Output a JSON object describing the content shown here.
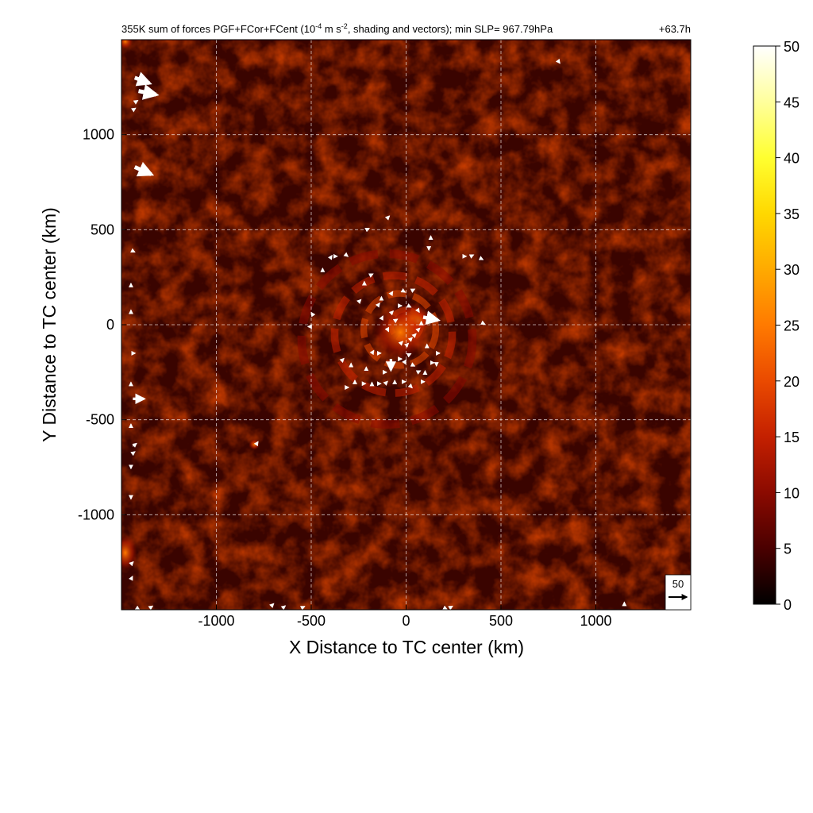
{
  "chart_data": {
    "type": "heatmap",
    "title_prefix": "355K sum of forces PGF+FCor+FCent (10",
    "title_exp1": "-4",
    "title_mid": " m s",
    "title_exp2": "-2",
    "title_suffix": ", shading and vectors); min SLP= 967.79hPa",
    "time_label": "+63.7h",
    "xlabel": "X Distance to TC center (km)",
    "ylabel": "Y Distance to TC center (km)",
    "xlim": [
      -1500,
      1500
    ],
    "ylim": [
      -1500,
      1500
    ],
    "xticks": [
      -1000,
      -500,
      0,
      500,
      1000
    ],
    "yticks": [
      -1000,
      -500,
      0,
      500,
      1000
    ],
    "xtick_labels": [
      "-1000",
      "-500",
      "0",
      "500",
      "1000"
    ],
    "ytick_labels": [
      "-1000",
      "-500",
      "0",
      "500",
      "1000"
    ],
    "grid": true,
    "colorbar": {
      "range": [
        0,
        50
      ],
      "ticks": [
        0,
        5,
        10,
        15,
        20,
        25,
        30,
        35,
        40,
        45,
        50
      ],
      "tick_labels": [
        "0",
        "5",
        "10",
        "15",
        "20",
        "25",
        "30",
        "35",
        "40",
        "45",
        "50"
      ],
      "colors": [
        "#000000",
        "#4a0000",
        "#8b0a00",
        "#c42000",
        "#ea4a00",
        "#ff7a00",
        "#ffaa00",
        "#ffd800",
        "#ffff30",
        "#ffff9c",
        "#ffffff"
      ]
    },
    "reference_vector": {
      "label": "50",
      "magnitude": 50
    },
    "vectors": [
      {
        "x": -1430,
        "y": 1300,
        "u": 40,
        "v": -15
      },
      {
        "x": -1410,
        "y": 1230,
        "u": 48,
        "v": -10
      },
      {
        "x": -1430,
        "y": 830,
        "u": 45,
        "v": -20
      },
      {
        "x": -1430,
        "y": 1170,
        "u": 8,
        "v": 5
      },
      {
        "x": -1440,
        "y": 1130,
        "u": 6,
        "v": 4
      },
      {
        "x": -1440,
        "y": -390,
        "u": 30,
        "v": 0
      },
      {
        "x": -1440,
        "y": -640,
        "u": 10,
        "v": 8
      },
      {
        "x": -1445,
        "y": -680,
        "u": 8,
        "v": 6
      },
      {
        "x": -1445,
        "y": 390,
        "u": 6,
        "v": -3
      },
      {
        "x": -1445,
        "y": -150,
        "u": 6,
        "v": 0
      },
      {
        "x": -1450,
        "y": -1340,
        "u": 4,
        "v": 8
      },
      {
        "x": -1450,
        "y": 200,
        "u": 0,
        "v": 6
      },
      {
        "x": -1450,
        "y": -540,
        "u": 0,
        "v": 6
      },
      {
        "x": -1450,
        "y": -320,
        "u": 0,
        "v": 6
      },
      {
        "x": -1450,
        "y": 60,
        "u": 0,
        "v": 6
      },
      {
        "x": -1450,
        "y": -740,
        "u": 0,
        "v": -6
      },
      {
        "x": -1450,
        "y": -900,
        "u": 0,
        "v": -6
      },
      {
        "x": -1450,
        "y": -1260,
        "u": 5,
        "v": 5
      },
      {
        "x": -1420,
        "y": -1490,
        "u": 6,
        "v": -4
      },
      {
        "x": -1350,
        "y": -1490,
        "u": 6,
        "v": 4
      },
      {
        "x": -710,
        "y": -1480,
        "u": 6,
        "v": 6
      },
      {
        "x": -650,
        "y": -1490,
        "u": 5,
        "v": 4
      },
      {
        "x": -550,
        "y": -1490,
        "u": 6,
        "v": 3
      },
      {
        "x": 200,
        "y": -1490,
        "u": 6,
        "v": -3
      },
      {
        "x": 230,
        "y": -1490,
        "u": 5,
        "v": 3
      },
      {
        "x": 1150,
        "y": -1480,
        "u": 0,
        "v": 10
      },
      {
        "x": 800,
        "y": 1390,
        "u": 3,
        "v": -4
      },
      {
        "x": -790,
        "y": -630,
        "u": 4,
        "v": 6
      },
      {
        "x": 90,
        "y": 40,
        "u": 40,
        "v": -8
      },
      {
        "x": -80,
        "y": -180,
        "u": 0,
        "v": -30
      },
      {
        "x": 80,
        "y": 0,
        "u": 0,
        "v": 8
      },
      {
        "x": 60,
        "y": -30,
        "u": 6,
        "v": 6
      },
      {
        "x": 40,
        "y": -60,
        "u": 6,
        "v": 6
      },
      {
        "x": 20,
        "y": -80,
        "u": 6,
        "v": 6
      },
      {
        "x": 0,
        "y": -110,
        "u": 6,
        "v": 6
      },
      {
        "x": -30,
        "y": -100,
        "u": 6,
        "v": 6
      },
      {
        "x": -60,
        "y": 20,
        "u": 6,
        "v": 4
      },
      {
        "x": -80,
        "y": 60,
        "u": 5,
        "v": 5
      },
      {
        "x": -100,
        "y": -20,
        "u": 3,
        "v": -6
      },
      {
        "x": -130,
        "y": 30,
        "u": 3,
        "v": 6
      },
      {
        "x": -150,
        "y": 100,
        "u": 4,
        "v": 5
      },
      {
        "x": -40,
        "y": 100,
        "u": 5,
        "v": 0
      },
      {
        "x": 10,
        "y": 100,
        "u": 6,
        "v": -3
      },
      {
        "x": 60,
        "y": 80,
        "u": 4,
        "v": -6
      },
      {
        "x": -20,
        "y": 180,
        "u": 5,
        "v": -3
      },
      {
        "x": 30,
        "y": 180,
        "u": 6,
        "v": 3
      },
      {
        "x": -80,
        "y": 160,
        "u": 4,
        "v": 6
      },
      {
        "x": -130,
        "y": 130,
        "u": 0,
        "v": 6
      },
      {
        "x": -150,
        "y": -150,
        "u": 6,
        "v": 0
      },
      {
        "x": -180,
        "y": -150,
        "u": 4,
        "v": 6
      },
      {
        "x": -120,
        "y": -250,
        "u": 6,
        "v": 0
      },
      {
        "x": -210,
        "y": -240,
        "u": 0,
        "v": 6
      },
      {
        "x": -290,
        "y": -220,
        "u": 0,
        "v": 6
      },
      {
        "x": -340,
        "y": -190,
        "u": 5,
        "v": 5
      },
      {
        "x": -320,
        "y": -330,
        "u": 6,
        "v": 0
      },
      {
        "x": -270,
        "y": -310,
        "u": 0,
        "v": 6
      },
      {
        "x": -230,
        "y": -310,
        "u": 6,
        "v": 0
      },
      {
        "x": -180,
        "y": -320,
        "u": 0,
        "v": 6
      },
      {
        "x": -150,
        "y": -310,
        "u": 6,
        "v": 0
      },
      {
        "x": -110,
        "y": -310,
        "u": 5,
        "v": 5
      },
      {
        "x": -60,
        "y": -310,
        "u": 0,
        "v": 6
      },
      {
        "x": -20,
        "y": -300,
        "u": 6,
        "v": 0
      },
      {
        "x": 20,
        "y": -320,
        "u": 5,
        "v": -5
      },
      {
        "x": 60,
        "y": -250,
        "u": 6,
        "v": 3
      },
      {
        "x": 80,
        "y": -300,
        "u": 6,
        "v": 0
      },
      {
        "x": 100,
        "y": -260,
        "u": 0,
        "v": 6
      },
      {
        "x": 130,
        "y": -200,
        "u": 6,
        "v": 0
      },
      {
        "x": 160,
        "y": -200,
        "u": 0,
        "v": -6
      },
      {
        "x": 30,
        "y": -210,
        "u": 6,
        "v": -3
      },
      {
        "x": 10,
        "y": -160,
        "u": 6,
        "v": 3
      },
      {
        "x": -10,
        "y": -200,
        "u": 4,
        "v": 6
      },
      {
        "x": -40,
        "y": -180,
        "u": 6,
        "v": 0
      },
      {
        "x": 110,
        "y": -120,
        "u": 0,
        "v": 6
      },
      {
        "x": 160,
        "y": -150,
        "u": 6,
        "v": 0
      },
      {
        "x": -500,
        "y": -10,
        "u": -6,
        "v": 0
      },
      {
        "x": -490,
        "y": 50,
        "u": -4,
        "v": 6
      },
      {
        "x": -400,
        "y": 350,
        "u": 4,
        "v": 6
      },
      {
        "x": -440,
        "y": 280,
        "u": 0,
        "v": 6
      },
      {
        "x": -380,
        "y": 360,
        "u": 6,
        "v": 0
      },
      {
        "x": -320,
        "y": 370,
        "u": 5,
        "v": -4
      },
      {
        "x": -210,
        "y": 500,
        "u": 6,
        "v": 3
      },
      {
        "x": -100,
        "y": 560,
        "u": 5,
        "v": 5
      },
      {
        "x": 130,
        "y": 450,
        "u": 0,
        "v": 6
      },
      {
        "x": 120,
        "y": 410,
        "u": 0,
        "v": -6
      },
      {
        "x": 300,
        "y": 360,
        "u": 6,
        "v": 0
      },
      {
        "x": 340,
        "y": 360,
        "u": 6,
        "v": 3
      },
      {
        "x": 390,
        "y": 350,
        "u": 6,
        "v": -3
      },
      {
        "x": 400,
        "y": 10,
        "u": 6,
        "v": -3
      },
      {
        "x": -220,
        "y": 210,
        "u": 0,
        "v": 6
      },
      {
        "x": -190,
        "y": 260,
        "u": 6,
        "v": 3
      },
      {
        "x": -250,
        "y": 120,
        "u": 5,
        "v": 5
      }
    ],
    "hotspots": [
      {
        "x": 60,
        "y": 20,
        "value": 42,
        "sx": 35,
        "sy": 35
      },
      {
        "x": 30,
        "y": 30,
        "value": 30,
        "sx": 60,
        "sy": 55
      },
      {
        "x": -30,
        "y": -40,
        "value": 18,
        "sx": 90,
        "sy": 90
      },
      {
        "x": -800,
        "y": -630,
        "value": 25,
        "sx": 18,
        "sy": 18
      },
      {
        "x": -1480,
        "y": 1490,
        "value": 20,
        "sx": 25,
        "sy": 25
      },
      {
        "x": -1480,
        "y": -1200,
        "value": 12,
        "sx": 40,
        "sy": 60
      }
    ],
    "rings": [
      {
        "r": 80,
        "value": 22,
        "width": 28
      },
      {
        "r": 190,
        "value": 18,
        "width": 35
      },
      {
        "r": 310,
        "value": 15,
        "width": 40
      },
      {
        "r": 450,
        "value": 11,
        "width": 45
      }
    ]
  }
}
